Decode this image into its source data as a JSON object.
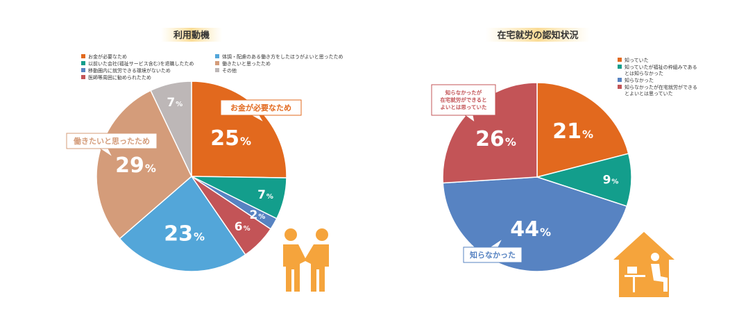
{
  "chart_data": [
    {
      "type": "pie",
      "title": "利用動機",
      "series": [
        {
          "name": "お金が必要なため",
          "value": 25,
          "color": "#E2691E"
        },
        {
          "name": "以前いた会社(福祉サービス含む)を退職したため",
          "value": 7,
          "color": "#139E8C"
        },
        {
          "name": "移動圏内に就労できる環境がないため",
          "value": 2,
          "color": "#5783C2"
        },
        {
          "name": "医師等周囲に勧められたため",
          "value": 6,
          "color": "#C35457"
        },
        {
          "name": "体調・配慮のある働き方をしたほうがよいと思ったため",
          "value": 23,
          "color": "#53A6D9"
        },
        {
          "name": "働きたいと思ったため",
          "value": 29,
          "color": "#D49C7A"
        },
        {
          "name": "その他",
          "value": 7,
          "color": "#BDB7B7"
        }
      ],
      "unit": "%",
      "callouts": [
        "お金が必要なため",
        "働きたいと思ったため"
      ],
      "legend_placement": "top-left"
    },
    {
      "type": "pie",
      "title": "在宅就労の認知状況",
      "series": [
        {
          "name": "知っていた",
          "value": 21,
          "color": "#E2691E"
        },
        {
          "name": "知っていたが福祉の枠組みであるとは知らなかった",
          "value": 9,
          "color": "#139E8C"
        },
        {
          "name": "知らなかった",
          "value": 44,
          "color": "#5783C2"
        },
        {
          "name": "知らなかったが在宅就労ができるとよいとは思っていた",
          "value": 26,
          "color": "#C35457"
        }
      ],
      "unit": "%",
      "callouts": [
        "知らなかったが在宅就労ができるとよいとは思っていた",
        "知らなかった"
      ],
      "legend_placement": "top-right"
    }
  ],
  "icons": {
    "left": "handshake-people-icon",
    "right": "home-work-icon",
    "icon_color": "#F5A43C"
  }
}
